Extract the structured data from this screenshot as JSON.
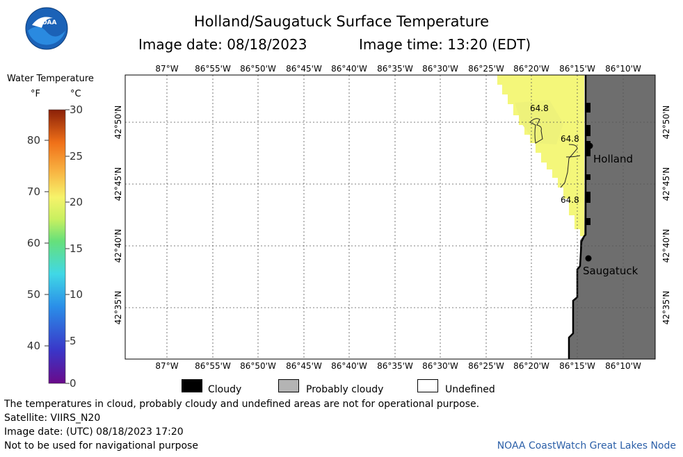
{
  "header": {
    "title": "Holland/Saugatuck Surface Temperature",
    "date_label": "Image date: 08/18/2023",
    "time_label": "Image time: 13:20 (EDT)",
    "logo_text": "NOAA"
  },
  "color_scale": {
    "title": "Water Temperature",
    "unit_f": "°F",
    "unit_c": "°C",
    "f_ticks": [
      "80",
      "70",
      "60",
      "50",
      "40"
    ],
    "c_ticks": [
      "30",
      "25",
      "20",
      "15",
      "10",
      "5",
      "0"
    ]
  },
  "map": {
    "lon_labels": [
      "87°W",
      "86°55'W",
      "86°50'W",
      "86°45'W",
      "86°40'W",
      "86°35'W",
      "86°30'W",
      "86°25'W",
      "86°20'W",
      "86°15'W",
      "86°10'W"
    ],
    "lat_labels": [
      "42°50'N",
      "42°45'N",
      "42°40'N",
      "42°35'N"
    ],
    "contour_labels": [
      "64.8",
      "64.8",
      "64.8"
    ],
    "cities": [
      "Holland",
      "Saugatuck"
    ],
    "water_color": "#f4f77a",
    "land_color": "#6e6e6e"
  },
  "legend": {
    "cloudy": "Cloudy",
    "probably_cloudy": "Probably cloudy",
    "undefined": "Undefined"
  },
  "footer": {
    "disclaimer": "The temperatures in cloud, probably cloudy and undefined areas are not for operational purpose.",
    "satellite": "Satellite: VIIRS_N20",
    "utc_date": "Image date: (UTC) 08/18/2023  17:20",
    "navigation": "Not to be used for navigational purpose",
    "credit": "NOAA CoastWatch Great Lakes Node"
  }
}
